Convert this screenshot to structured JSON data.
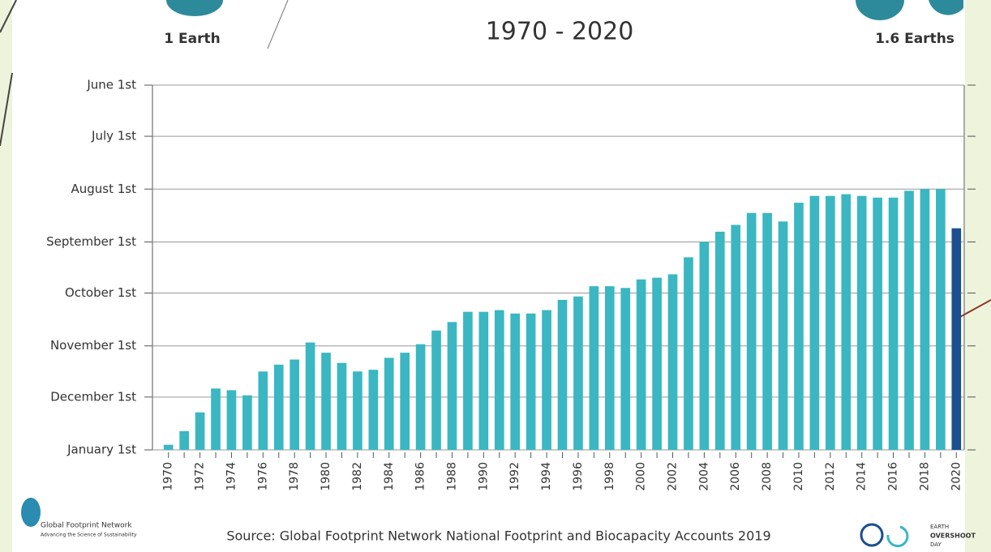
{
  "chart_data": {
    "type": "bar",
    "title": "1970 - 2020",
    "left_label": "1 Earth",
    "right_label": "1.6 Earths",
    "source": "Source: Global Footprint Network National Footprint and Biocapacity Accounts 2019",
    "logo_left": {
      "name": "Global Footprint Network",
      "tagline": "Advancing the Science of Sustainability"
    },
    "logo_right": [
      "EARTH",
      "OVERSHOOT",
      "DAY"
    ],
    "categories": [
      "1970",
      null,
      "1972",
      null,
      "1974",
      null,
      "1976",
      null,
      "1978",
      null,
      "1980",
      null,
      "1982",
      null,
      "1984",
      null,
      "1986",
      null,
      "1988",
      null,
      "1990",
      null,
      "1992",
      null,
      "1994",
      null,
      "1996",
      null,
      "1998",
      null,
      "2000",
      null,
      "2002",
      null,
      "2004",
      null,
      "2006",
      null,
      "2008",
      null,
      "2010",
      null,
      "2012",
      null,
      "2014",
      null,
      "2016",
      null,
      "2018",
      null,
      "2020"
    ],
    "values": [
      363,
      355,
      344,
      330,
      331,
      334,
      320,
      316,
      313,
      303,
      309,
      315,
      320,
      319,
      312,
      309,
      304,
      296,
      291,
      285,
      285,
      284,
      286,
      286,
      284,
      278,
      276,
      270,
      270,
      271,
      266,
      265,
      263,
      253,
      244,
      238,
      234,
      227,
      227,
      232,
      221,
      217,
      217,
      216,
      217,
      218,
      218,
      214,
      213,
      213,
      236
    ],
    "colors": [
      "#3ab7c2",
      "#3ab7c2",
      "#3ab7c2",
      "#3ab7c2",
      "#3ab7c2",
      "#3ab7c2",
      "#3ab7c2",
      "#3ab7c2",
      "#3ab7c2",
      "#3ab7c2",
      "#3ab7c2",
      "#3ab7c2",
      "#3ab7c2",
      "#3ab7c2",
      "#3ab7c2",
      "#3ab7c2",
      "#3ab7c2",
      "#3ab7c2",
      "#3ab7c2",
      "#3ab7c2",
      "#3ab7c2",
      "#3ab7c2",
      "#3ab7c2",
      "#3ab7c2",
      "#3ab7c2",
      "#3ab7c2",
      "#3ab7c2",
      "#3ab7c2",
      "#3ab7c2",
      "#3ab7c2",
      "#3ab7c2",
      "#3ab7c2",
      "#3ab7c2",
      "#3ab7c2",
      "#3ab7c2",
      "#3ab7c2",
      "#3ab7c2",
      "#3ab7c2",
      "#3ab7c2",
      "#3ab7c2",
      "#3ab7c2",
      "#3ab7c2",
      "#3ab7c2",
      "#3ab7c2",
      "#3ab7c2",
      "#3ab7c2",
      "#3ab7c2",
      "#3ab7c2",
      "#3ab7c2",
      "#3ab7c2",
      "#1b4f8f"
    ],
    "ylim": [
      366,
      152
    ],
    "yticks": [
      {
        "value": 366,
        "label": "January 1st"
      },
      {
        "value": 335,
        "label": "December 1st"
      },
      {
        "value": 305,
        "label": "November 1st"
      },
      {
        "value": 274,
        "label": "October 1st"
      },
      {
        "value": 244,
        "label": "September 1st"
      },
      {
        "value": 213,
        "label": "August 1st"
      },
      {
        "value": 182,
        "label": "July 1st"
      },
      {
        "value": 152,
        "label": "June 1st"
      }
    ],
    "grid": true
  }
}
